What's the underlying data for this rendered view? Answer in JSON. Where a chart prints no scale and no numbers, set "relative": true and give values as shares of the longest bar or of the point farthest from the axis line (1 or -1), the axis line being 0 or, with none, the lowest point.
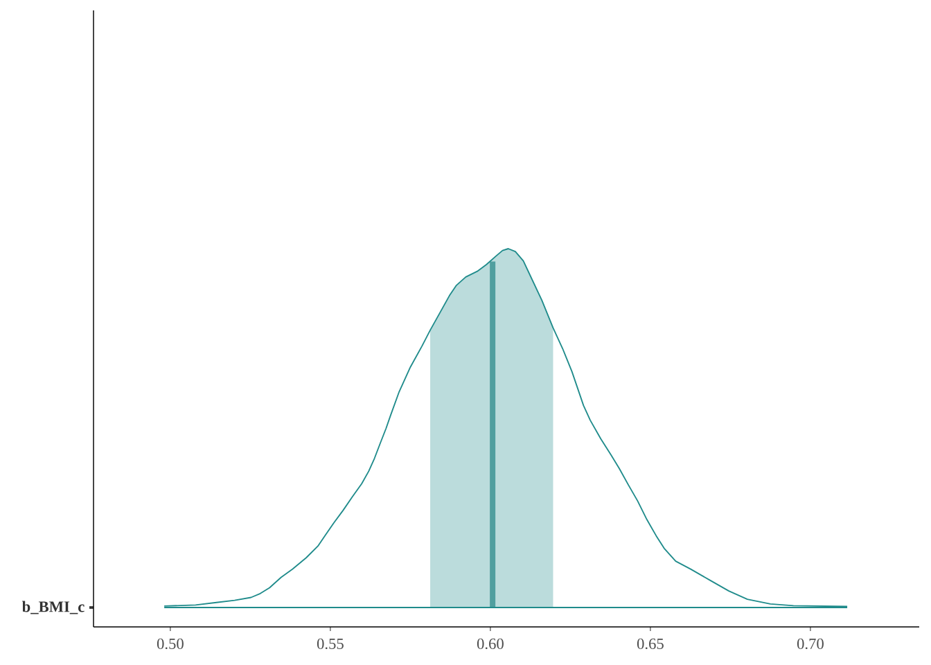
{
  "chart_data": {
    "type": "line",
    "relative": true,
    "xlim": [
      0.476,
      0.734
    ],
    "xticks": [
      {
        "value": 0.5,
        "label": "0.50"
      },
      {
        "value": 0.55,
        "label": "0.55"
      },
      {
        "value": 0.6,
        "label": "0.60"
      },
      {
        "value": 0.65,
        "label": "0.65"
      },
      {
        "value": 0.7,
        "label": "0.70"
      }
    ],
    "annotations": [
      "b_BMI_c"
    ],
    "x": [
      0.4981,
      0.5079,
      0.5144,
      0.5201,
      0.5252,
      0.5281,
      0.531,
      0.5346,
      0.5382,
      0.5425,
      0.5461,
      0.5483,
      0.5511,
      0.554,
      0.5569,
      0.5598,
      0.562,
      0.5638,
      0.5656,
      0.5674,
      0.5688,
      0.5714,
      0.575,
      0.5786,
      0.5812,
      0.5844,
      0.5872,
      0.5894,
      0.5923,
      0.5959,
      0.5988,
      0.6017,
      0.6038,
      0.6056,
      0.6078,
      0.6103,
      0.6132,
      0.6161,
      0.6196,
      0.6226,
      0.6255,
      0.6291,
      0.6312,
      0.6345,
      0.6377,
      0.6403,
      0.6431,
      0.646,
      0.6489,
      0.6518,
      0.6543,
      0.6579,
      0.6626,
      0.6688,
      0.6745,
      0.6803,
      0.6875,
      0.6947,
      0.7115
    ],
    "series": [
      {
        "color": "#1f8b8b",
        "values": [
          0.004,
          0.007,
          0.014,
          0.02,
          0.028,
          0.039,
          0.055,
          0.084,
          0.107,
          0.139,
          0.171,
          0.2,
          0.236,
          0.271,
          0.309,
          0.345,
          0.38,
          0.416,
          0.458,
          0.499,
          0.535,
          0.599,
          0.67,
          0.728,
          0.773,
          0.824,
          0.869,
          0.898,
          0.921,
          0.937,
          0.956,
          0.979,
          0.995,
          1.0,
          0.992,
          0.966,
          0.911,
          0.856,
          0.779,
          0.721,
          0.657,
          0.563,
          0.522,
          0.47,
          0.425,
          0.387,
          0.342,
          0.297,
          0.245,
          0.2,
          0.165,
          0.129,
          0.107,
          0.075,
          0.046,
          0.023,
          0.01,
          0.005,
          0.003
        ]
      }
    ],
    "bands": [
      {
        "axis": "x",
        "from": 0.5812,
        "to": 0.6196,
        "color": "#bbdcdc"
      }
    ],
    "ref_lines": [
      {
        "axis": "x",
        "value": 0.6007,
        "color": "#509f9f"
      },
      {
        "axis": "y",
        "value": 0,
        "color": "#1f8b8b"
      }
    ]
  }
}
